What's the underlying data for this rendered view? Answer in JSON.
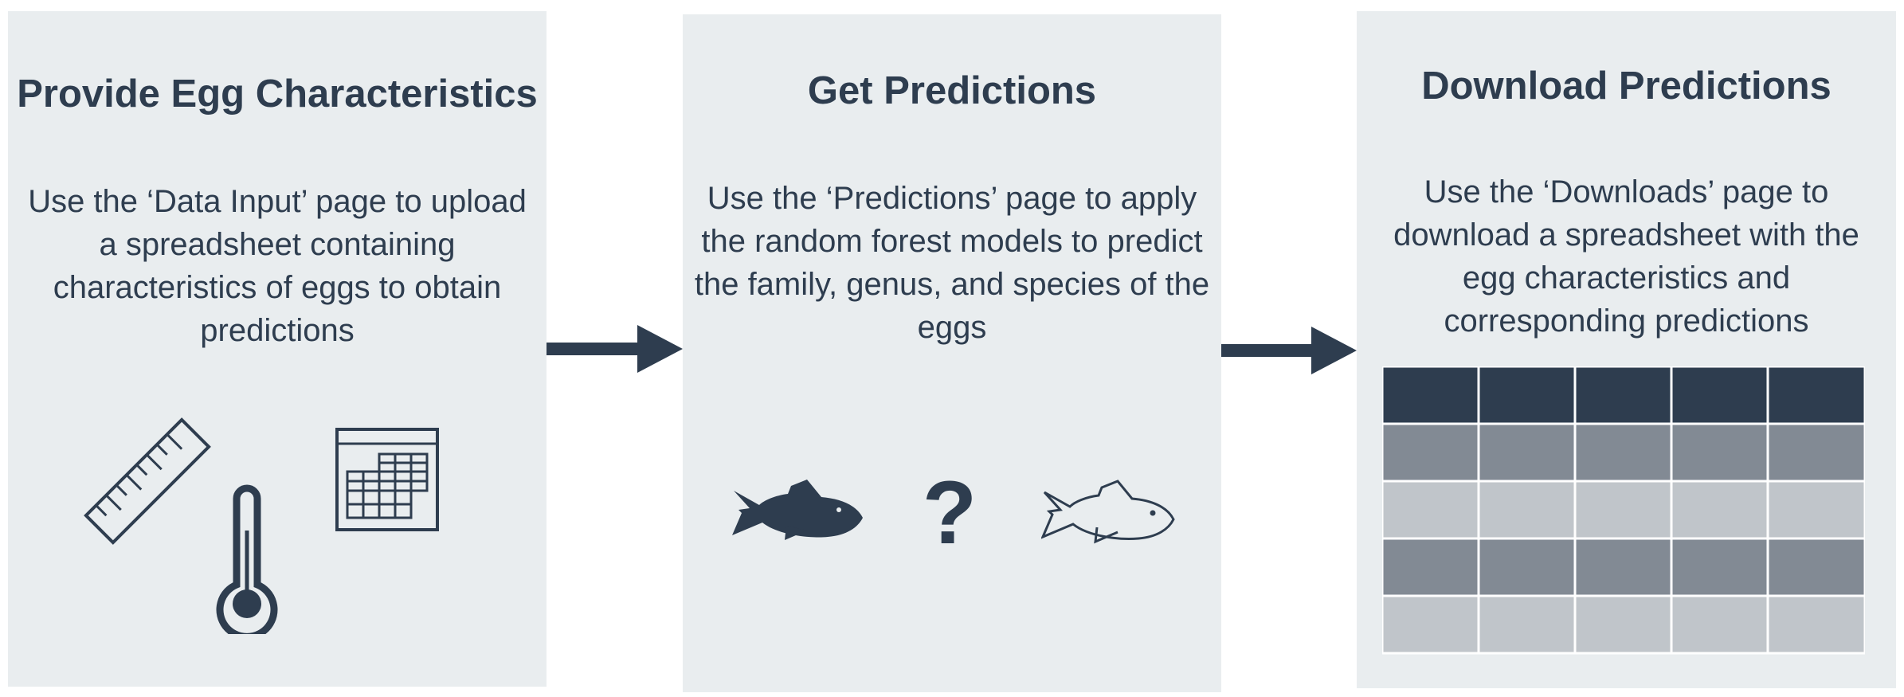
{
  "colors": {
    "panel_bg": "#e9edef",
    "ink": "#2e3d4f",
    "row_dark": "#828a94",
    "row_light": "#c0c5ca"
  },
  "panels": [
    {
      "title": "Provide Egg Characteristics",
      "description": "Use the ‘Data Input’ page to upload a spreadsheet containing characteristics of eggs to obtain predictions",
      "icons": [
        "ruler-icon",
        "thermometer-icon",
        "calendar-grid-icon"
      ]
    },
    {
      "title": "Get Predictions",
      "description": "Use the ‘Predictions’ page to apply the random forest models to predict the family, genus, and species of the eggs",
      "icons": [
        "fish-filled-icon",
        "question-mark-icon",
        "fish-outline-icon"
      ],
      "question_mark": "?"
    },
    {
      "title": "Download Predictions",
      "description": "Use the ‘Downloads’ page to download a spreadsheet with the egg characteristics and corresponding predictions",
      "icons": [
        "spreadsheet-table-icon"
      ],
      "table": {
        "columns": 5,
        "rows": 5,
        "header_rows": 1
      }
    }
  ],
  "arrows": [
    "arrow-right-icon",
    "arrow-right-icon"
  ]
}
